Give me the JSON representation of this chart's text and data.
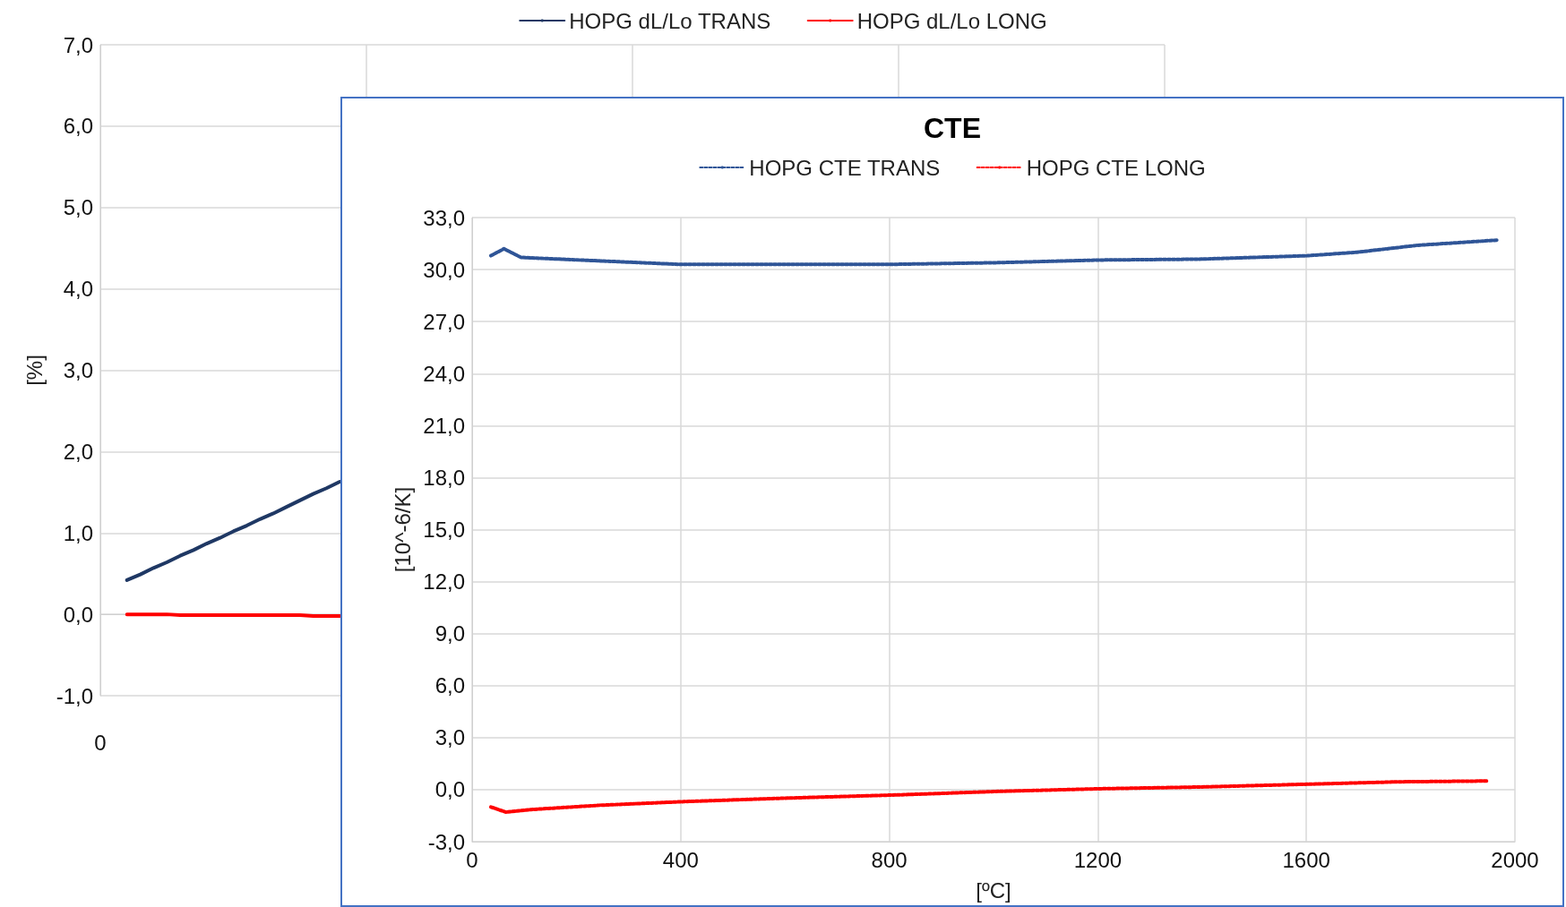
{
  "chart_data": [
    {
      "type": "line",
      "ylabel": "[%]",
      "legend": "top",
      "grid": true,
      "marker": "none",
      "line_style": "solid",
      "categories": [
        "0",
        null,
        null,
        null,
        null,
        null,
        null,
        null,
        null,
        null,
        null,
        null,
        null,
        null,
        null,
        null,
        null,
        null,
        null,
        null,
        null,
        null,
        null,
        null,
        null,
        null,
        null,
        null,
        null,
        null,
        null,
        null,
        null,
        null,
        null,
        null,
        null,
        null,
        null,
        null,
        null,
        null,
        null,
        null,
        null,
        null,
        null,
        null,
        null,
        null,
        null,
        null,
        null,
        null,
        null,
        null,
        null,
        null,
        null,
        null,
        null,
        null,
        null,
        null,
        null,
        null,
        null,
        null,
        null,
        null,
        null,
        null,
        null,
        null,
        null,
        null,
        null,
        null,
        null,
        null,
        null
      ],
      "ylim": [
        -1,
        7
      ],
      "yticks": [
        {
          "value": -1,
          "label": "-1,0"
        },
        {
          "value": 0,
          "label": "0,0"
        },
        {
          "value": 1,
          "label": "1,0"
        },
        {
          "value": 2,
          "label": "2,0"
        },
        {
          "value": 3,
          "label": "3,0"
        },
        {
          "value": 4,
          "label": "4,0"
        },
        {
          "value": 5,
          "label": "5,0"
        },
        {
          "value": 6,
          "label": "6,0"
        },
        {
          "value": 7,
          "label": "7,0"
        }
      ],
      "series": [
        {
          "name": "HOPG dL/Lo TRANS",
          "color": "#1f3864",
          "values": [
            null,
            null,
            0.42,
            0.49,
            0.57,
            0.64,
            0.72,
            0.79,
            0.87,
            0.94,
            1.02,
            1.09,
            1.17,
            1.24,
            1.32,
            1.4,
            1.48,
            1.55,
            1.63,
            null,
            null,
            null,
            null,
            null,
            null,
            null,
            null,
            null,
            null,
            null,
            null,
            null,
            null,
            null,
            null,
            null,
            null,
            null,
            null,
            null,
            null,
            null,
            null,
            null,
            null,
            null,
            null,
            null,
            null,
            null,
            null,
            null,
            null,
            null,
            null,
            null,
            null,
            null,
            null,
            null,
            null,
            null,
            null,
            null,
            null,
            null,
            null,
            null,
            null,
            null,
            null,
            null,
            null,
            null,
            null,
            null,
            null,
            null,
            null,
            null,
            null
          ]
        },
        {
          "name": "HOPG dL/Lo LONG",
          "color": "#ff0000",
          "values": [
            null,
            null,
            0.0,
            0.0,
            0.0,
            0.0,
            -0.01,
            -0.01,
            -0.01,
            -0.01,
            -0.01,
            -0.01,
            -0.01,
            -0.01,
            -0.01,
            -0.01,
            -0.02,
            -0.02,
            -0.02,
            null,
            null,
            null,
            null,
            null,
            null,
            null,
            null,
            null,
            null,
            null,
            null,
            null,
            null,
            null,
            null,
            null,
            null,
            null,
            null,
            null,
            null,
            null,
            null,
            null,
            null,
            null,
            null,
            null,
            null,
            null,
            null,
            null,
            null,
            null,
            null,
            null,
            null,
            null,
            null,
            null,
            null,
            null,
            null,
            null,
            null,
            null,
            null,
            null,
            null,
            null,
            null,
            null,
            null,
            null,
            null,
            null,
            null,
            null,
            null,
            null,
            null
          ]
        }
      ]
    },
    {
      "type": "line",
      "title": "CTE",
      "xlabel": "[ºC]",
      "ylabel": "[10^-6/K]",
      "legend": "top",
      "grid": true,
      "marker": "none",
      "line_style": "dashed",
      "xlim": [
        0,
        2000
      ],
      "xticks": [
        0,
        400,
        800,
        1200,
        1600,
        2000
      ],
      "ylim": [
        -3,
        33
      ],
      "yticks": [
        {
          "value": -3,
          "label": "-3,0"
        },
        {
          "value": 0,
          "label": "0,0"
        },
        {
          "value": 3,
          "label": "3,0"
        },
        {
          "value": 6,
          "label": "6,0"
        },
        {
          "value": 9,
          "label": "9,0"
        },
        {
          "value": 12,
          "label": "12,0"
        },
        {
          "value": 15,
          "label": "15,0"
        },
        {
          "value": 18,
          "label": "18,0"
        },
        {
          "value": 21,
          "label": "21,0"
        },
        {
          "value": 24,
          "label": "24,0"
        },
        {
          "value": 27,
          "label": "27,0"
        },
        {
          "value": 30,
          "label": "30,0"
        },
        {
          "value": 33,
          "label": "33,0"
        }
      ],
      "series": [
        {
          "name": "HOPG CTE TRANS",
          "color": "#2f5597",
          "x": [
            36,
            61,
            94,
            246,
            399,
            590,
            800,
            1010,
            1202,
            1393,
            1602,
            1697,
            1813,
            1966
          ],
          "values": [
            30.8,
            31.2,
            30.7,
            30.5,
            30.3,
            30.3,
            30.3,
            30.4,
            30.55,
            30.6,
            30.8,
            31.0,
            31.4,
            31.7
          ]
        },
        {
          "name": "HOPG CTE LONG",
          "color": "#ff0000",
          "x": [
            36,
            65,
            113,
            246,
            399,
            590,
            820,
            1010,
            1202,
            1393,
            1585,
            1776,
            1948
          ],
          "values": [
            -1.0,
            -1.3,
            -1.15,
            -0.9,
            -0.7,
            -0.5,
            -0.3,
            -0.1,
            0.05,
            0.15,
            0.3,
            0.45,
            0.5
          ]
        }
      ]
    }
  ]
}
